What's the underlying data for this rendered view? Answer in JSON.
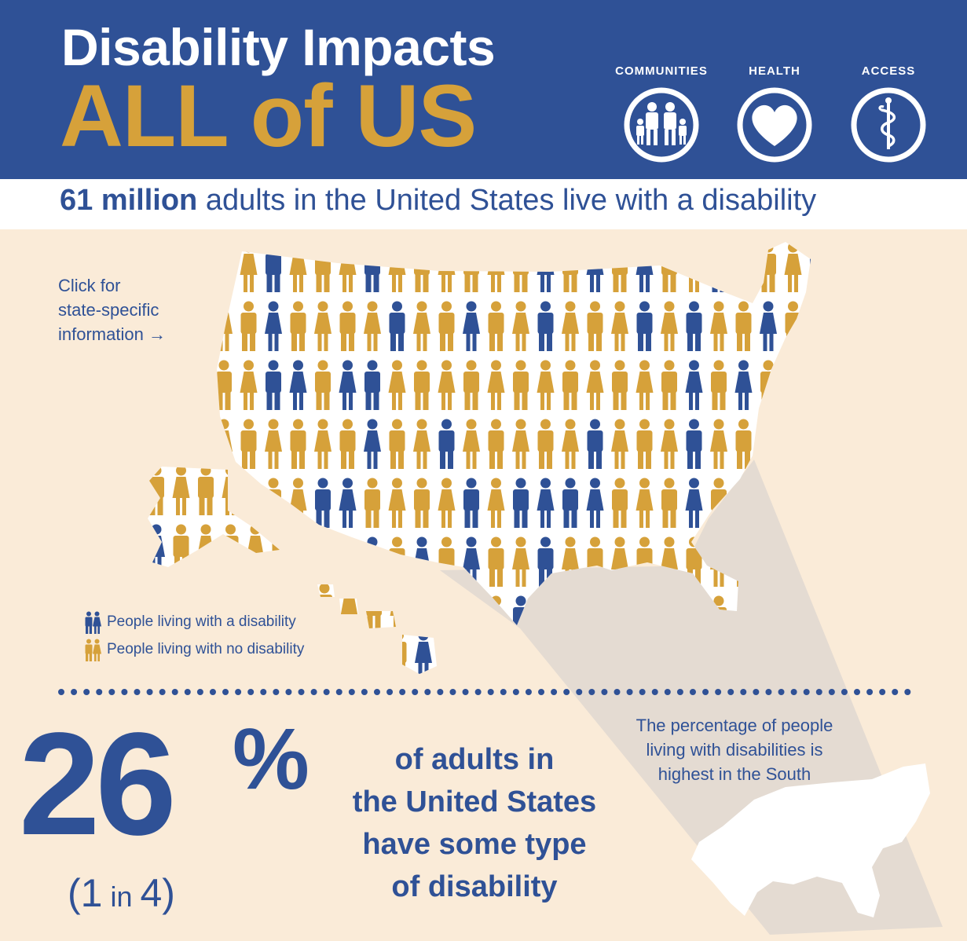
{
  "header": {
    "title_line1": "Disability Impacts",
    "title_line2": "ALL of US",
    "icons": [
      {
        "label": "COMMUNITIES",
        "icon": "family-icon"
      },
      {
        "label": "HEALTH",
        "icon": "heart-icon"
      },
      {
        "label": "ACCESS",
        "icon": "caduceus-icon"
      }
    ]
  },
  "subtitle": {
    "bold": "61 million",
    "rest": " adults in the United States live with a disability"
  },
  "map": {
    "hint_lines": [
      "Click for",
      "state-specific",
      "information →"
    ]
  },
  "legend": {
    "disability": "People living with a disability",
    "no_disability": "People living with no disability"
  },
  "stat": {
    "number": "26",
    "percent": "%",
    "ratio_left": "(1",
    "ratio_mid": " in ",
    "ratio_right": "4)",
    "statement_lines": [
      "of adults in",
      "the United States",
      "have some type",
      "of disability"
    ]
  },
  "south_note": {
    "lines": [
      "The percentage of people",
      "living with disabilities is",
      "highest in the South"
    ]
  },
  "colors": {
    "blue": "#2f5196",
    "gold": "#d6a13a",
    "cream": "#faebd8"
  }
}
